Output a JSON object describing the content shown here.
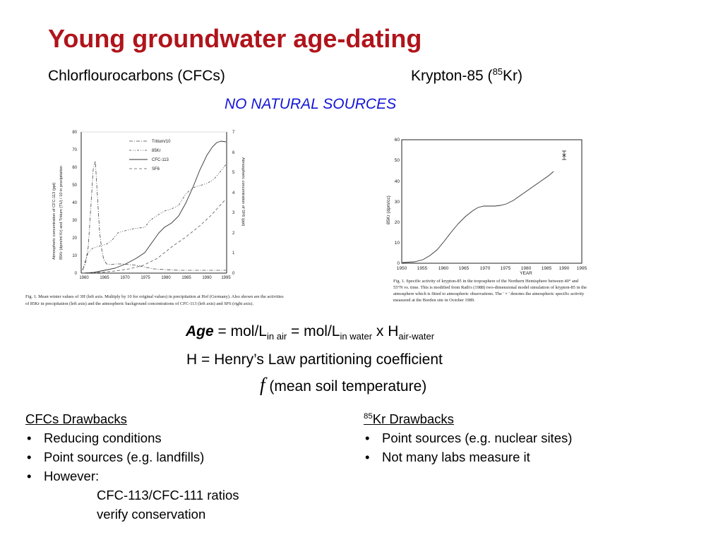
{
  "title": "Young groundwater age-dating",
  "headings": {
    "cfc": "Chlorflourocarbons (CFCs)",
    "kr_prefix": "Krypton-85 (",
    "kr_sup": "85",
    "kr_suffix": "Kr)"
  },
  "no_natural": "NO NATURAL SOURCES",
  "left_figure": {
    "x_ticks": [
      "1960",
      "1965",
      "1970",
      "1975",
      "1980",
      "1985",
      "1990",
      "1995"
    ],
    "y_left_ticks": [
      "0",
      "10",
      "20",
      "30",
      "40",
      "50",
      "60",
      "70",
      "80"
    ],
    "y_right_ticks": [
      "0",
      "1",
      "2",
      "3",
      "4",
      "5",
      "6",
      "7"
    ],
    "legend": [
      "Tritium/10",
      "85Kr",
      "CFC-113",
      "SF6"
    ],
    "y_left_label_1": "Atmospheric concentration of CFC-113 (ppt)",
    "y_left_label_2": "85Kr (dpm/ml Kr) and Tritium (TU) / 10 in precipitation",
    "y_right_label": "Atmospheric concentration of SF6 (ppt)",
    "caption_1": "Fig. 1. Mean winter values of 3H (left axis. Multiply by 10 for original values) in precipitation at Hof (Germany). Also shown are the activities",
    "caption_2": "of 85Kr in precipitation (left axis) and the atmospheric background concentrations of CFC-113 (left axis) and SF6 (right axis)."
  },
  "right_figure": {
    "x_ticks": [
      "1950",
      "1955",
      "1960",
      "1965",
      "1970",
      "1975",
      "1980",
      "1985",
      "1990",
      "1995"
    ],
    "y_ticks": [
      "0",
      "10",
      "20",
      "30",
      "40",
      "50",
      "60"
    ],
    "x_label": "YEAR",
    "y_label": "85Kr (dpm/cc)",
    "caption_1": "Fig. 1. Specific activity of krypton-85 in the troposphere of the Northern Hemisphere between 40° and",
    "caption_2": "55°N vs. time. This is modified from Rath's (1988) two-dimensional model simulation of krypton-85 in the",
    "caption_3": "atmosphere which is fitted to atmospheric observations. The ' × ' denotes the atmospheric specific activity",
    "caption_4": "measured at the Borden site in October 1989."
  },
  "equation": {
    "age": "Age",
    "eq1": " = mol/L",
    "sub1": "in air",
    "eq2": " = mol/L",
    "sub2": "in water",
    "eq3": " x H",
    "sub3": "air-water"
  },
  "henry": "H = Henry’s Law partitioning coefficient",
  "function": {
    "symbol": "f",
    "text": "(mean soil temperature)"
  },
  "cfc_drawbacks": {
    "heading": "CFCs Drawbacks",
    "items": [
      "Reducing conditions",
      "Point sources (e.g. landfills)",
      "However:"
    ],
    "indent_lines": [
      "CFC-113/CFC-111 ratios",
      "verify conservation"
    ]
  },
  "kr_drawbacks": {
    "heading_sup": "85",
    "heading": "Kr Drawbacks",
    "items": [
      "Point sources (e.g. nuclear sites)",
      "Not many labs measure it"
    ]
  },
  "colors": {
    "title": "#b0141b",
    "no_natural": "#1414d8"
  }
}
